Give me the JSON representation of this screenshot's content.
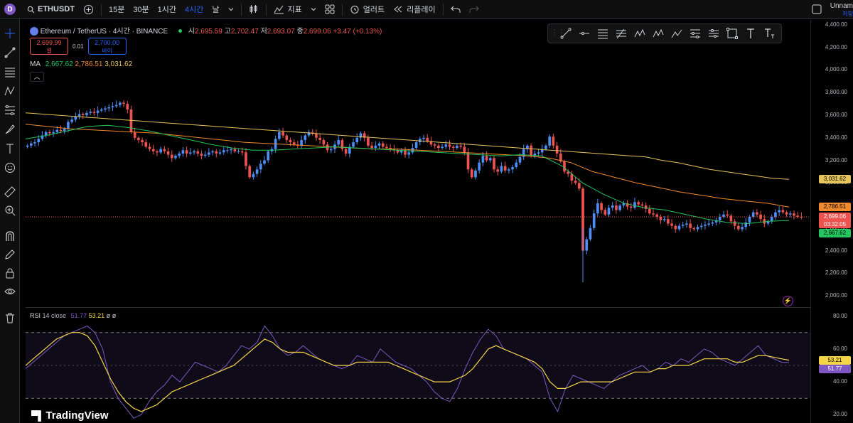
{
  "topbar": {
    "logo_letter": "D",
    "symbol": "ETHUSDT",
    "timeframes": [
      "15분",
      "30분",
      "1시간",
      "4시간",
      "날"
    ],
    "active_timeframe": "4시간",
    "indicators_label": "지표",
    "alert_label": "얼러트",
    "replay_label": "리플레이",
    "layout_name": "Unnam",
    "layout_save": "저장"
  },
  "legend": {
    "title": "Ethereum / TetherUS · 4시간 · BINANCE",
    "open_label": "시",
    "open": "2,695.59",
    "high_label": "고",
    "high": "2,702.47",
    "low_label": "저",
    "low": "2,693.07",
    "close_label": "종",
    "close": "2,699.06",
    "change": "+3.47 (+0.13%)",
    "sell_price": "2,699.99",
    "sell_label": "셀",
    "spread": "0.01",
    "buy_price": "2,700.00",
    "buy_label": "바이",
    "ma_label": "MA",
    "ma1": "2,667.62",
    "ma2": "2,786.51",
    "ma3": "3,031.62"
  },
  "rsi_legend": {
    "label": "RSI",
    "params": "14 close",
    "rsi": "51.77",
    "ma": "53.21",
    "extra1": "ø",
    "extra2": "ø"
  },
  "price_axis": {
    "ticks": [
      "4,400.00",
      "4,200.00",
      "4,000.00",
      "3,800.00",
      "3,600.00",
      "3,400.00",
      "3,200.00",
      "3,000.00",
      "2,800.00",
      "2,600.00",
      "2,400.00",
      "2,200.00",
      "2,000.00"
    ],
    "tags": {
      "ma3": "3,031.62",
      "ma2": "2,786.51",
      "last": "2,699.06",
      "countdown": "03:32:05",
      "ma1": "2,667.62"
    }
  },
  "rsi_axis": {
    "ticks": [
      "80.00",
      "60.00",
      "40.00",
      "20.00"
    ],
    "tags": {
      "ma": "53.21",
      "rsi": "51.77"
    }
  },
  "colors": {
    "up": "#26a69a",
    "down": "#ef5350",
    "candle_up": "#4d8ef7",
    "candle_down": "#ef5350",
    "ma1": "#22c55e",
    "ma2": "#f0892b",
    "ma3": "#e5c45a",
    "rsi": "#7e57c2",
    "rsi_ma": "#f5d547",
    "accent": "#2962ff"
  },
  "branding": {
    "text": "TradingView"
  },
  "chart_data": {
    "type": "candlestick",
    "price_range": [
      1900,
      4450
    ],
    "last_price": 2699.06,
    "close_series": [
      3330,
      3350,
      3360,
      3390,
      3420,
      3450,
      3440,
      3450,
      3470,
      3460,
      3480,
      3540,
      3560,
      3590,
      3610,
      3600,
      3620,
      3630,
      3620,
      3640,
      3650,
      3660,
      3670,
      3680,
      3690,
      3710,
      3700,
      3650,
      3450,
      3400,
      3380,
      3360,
      3320,
      3300,
      3280,
      3270,
      3300,
      3280,
      3250,
      3220,
      3240,
      3260,
      3290,
      3260,
      3270,
      3280,
      3260,
      3240,
      3250,
      3270,
      3280,
      3260,
      3270,
      3290,
      3290,
      3300,
      3280,
      3280,
      3270,
      3150,
      3050,
      3080,
      3120,
      3170,
      3200,
      3280,
      3300,
      3390,
      3450,
      3420,
      3380,
      3360,
      3340,
      3330,
      3380,
      3420,
      3450,
      3440,
      3400,
      3380,
      3340,
      3290,
      3300,
      3340,
      3380,
      3300,
      3260,
      3320,
      3360,
      3400,
      3440,
      3400,
      3330,
      3310,
      3330,
      3350,
      3320,
      3310,
      3300,
      3290,
      3270,
      3290,
      3250,
      3270,
      3310,
      3360,
      3390,
      3400,
      3370,
      3340,
      3330,
      3310,
      3320,
      3340,
      3320,
      3310,
      3330,
      3320,
      3270,
      3120,
      3050,
      3110,
      3180,
      3240,
      3200,
      3220,
      3120,
      3100,
      3150,
      3110,
      3120,
      3140,
      3180,
      3230,
      3300,
      3330,
      3240,
      3260,
      3270,
      3300,
      3330,
      3410,
      3330,
      3260,
      3190,
      3100,
      3080,
      3020,
      3000,
      2950,
      2400,
      2500,
      2600,
      2730,
      2820,
      2760,
      2720,
      2780,
      2800,
      2760,
      2800,
      2820,
      2790,
      2780,
      2830,
      2810,
      2800,
      2770,
      2730,
      2720,
      2700,
      2670,
      2680,
      2640,
      2620,
      2590,
      2620,
      2630,
      2640,
      2600,
      2590,
      2610,
      2620,
      2630,
      2640,
      2650,
      2670,
      2700,
      2720,
      2710,
      2660,
      2620,
      2590,
      2610,
      2650,
      2700,
      2740,
      2720,
      2680,
      2640,
      2660,
      2700,
      2740,
      2760,
      2740,
      2720,
      2730,
      2710,
      2700,
      2699
    ],
    "ma_slow": [
      3620,
      3610,
      3600,
      3590,
      3580,
      3570,
      3560,
      3550,
      3540,
      3530,
      3520,
      3510,
      3500,
      3490,
      3480,
      3470,
      3460,
      3450,
      3440,
      3430,
      3420,
      3410,
      3400,
      3390,
      3380,
      3370,
      3360,
      3350,
      3340,
      3330,
      3320,
      3310,
      3300,
      3290,
      3280,
      3270,
      3260,
      3250,
      3240,
      3230,
      3200,
      3180,
      3150,
      3120,
      3100,
      3080,
      3060,
      3040,
      3031.62
    ],
    "ma_mid": [
      3520,
      3500,
      3480,
      3470,
      3460,
      3450,
      3440,
      3420,
      3400,
      3380,
      3360,
      3350,
      3340,
      3330,
      3320,
      3310,
      3300,
      3300,
      3290,
      3280,
      3270,
      3260,
      3250,
      3240,
      3220,
      3180,
      3100,
      3050,
      3000,
      2960,
      2920,
      2890,
      2860,
      2840,
      2820,
      2786.51
    ],
    "ma_fast": [
      3390,
      3420,
      3460,
      3500,
      3510,
      3490,
      3460,
      3420,
      3380,
      3340,
      3310,
      3290,
      3290,
      3300,
      3310,
      3320,
      3310,
      3300,
      3290,
      3280,
      3270,
      3260,
      3250,
      3240,
      3250,
      3240,
      3150,
      3000,
      2900,
      2820,
      2780,
      2760,
      2720,
      2680,
      2650,
      2640,
      2660,
      2667.62
    ],
    "rsi_range": [
      15,
      85
    ],
    "rsi_series": [
      48,
      52,
      56,
      60,
      64,
      68,
      70,
      72,
      74,
      70,
      60,
      40,
      30,
      24,
      18,
      20,
      28,
      34,
      38,
      44,
      40,
      46,
      52,
      50,
      48,
      46,
      50,
      56,
      62,
      60,
      64,
      74,
      68,
      60,
      56,
      58,
      62,
      58,
      54,
      52,
      50,
      48,
      50,
      56,
      54,
      52,
      60,
      56,
      52,
      50,
      48,
      44,
      40,
      34,
      30,
      28,
      36,
      48,
      58,
      66,
      72,
      68,
      60,
      58,
      56,
      54,
      50,
      46,
      30,
      22,
      36,
      44,
      42,
      40,
      38,
      36,
      40,
      44,
      46,
      48,
      50,
      46,
      48,
      52,
      50,
      54,
      52,
      56,
      60,
      58,
      54,
      52,
      50,
      54,
      58,
      62,
      56,
      54,
      52,
      51.77
    ],
    "rsi_ma_series": [
      50,
      54,
      58,
      62,
      66,
      68,
      70,
      70,
      68,
      62,
      52,
      42,
      34,
      28,
      24,
      22,
      24,
      26,
      30,
      34,
      36,
      38,
      40,
      42,
      44,
      46,
      48,
      50,
      54,
      58,
      62,
      66,
      64,
      60,
      58,
      58,
      58,
      56,
      54,
      52,
      50,
      50,
      50,
      52,
      52,
      52,
      52,
      52,
      50,
      48,
      46,
      44,
      42,
      40,
      40,
      40,
      42,
      44,
      48,
      54,
      60,
      62,
      60,
      58,
      56,
      54,
      52,
      48,
      40,
      36,
      36,
      38,
      40,
      40,
      40,
      40,
      40,
      42,
      44,
      46,
      46,
      46,
      48,
      48,
      50,
      50,
      50,
      52,
      54,
      54,
      54,
      54,
      52,
      52,
      54,
      56,
      56,
      55,
      54,
      53.21
    ]
  }
}
